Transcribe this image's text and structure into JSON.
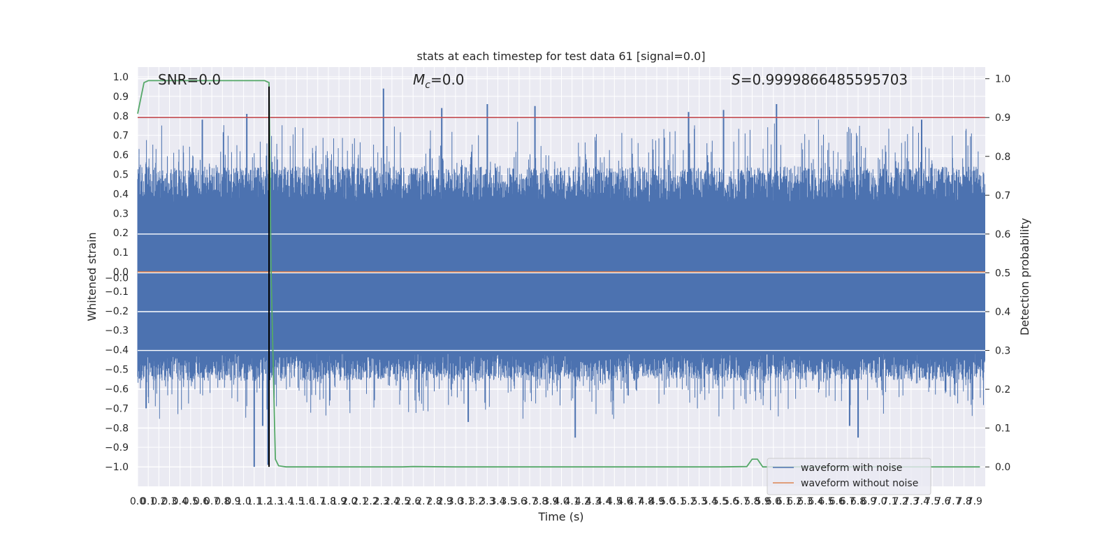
{
  "chart_data": {
    "type": "line",
    "title": "stats at each timestep for test data 61 [signal=0.0]",
    "xlabel": "Time (s)",
    "ylabel_left": "Whitened strain",
    "ylabel_right": "Detection probability",
    "xlim": [
      0.0,
      8.0
    ],
    "ylim_left": [
      -1.1,
      1.05
    ],
    "ylim_right": [
      -0.05,
      1.03
    ],
    "x_ticks": [
      "0.0",
      "0.1",
      "0.2",
      "0.3",
      "0.4",
      "0.5",
      "0.6",
      "0.7",
      "0.8",
      "0.9",
      "1.0",
      "1.1",
      "1.2",
      "1.3",
      "1.4",
      "1.5",
      "1.6",
      "1.7",
      "1.8",
      "1.9",
      "2.0",
      "2.1",
      "2.2",
      "2.3",
      "2.4",
      "2.5",
      "2.6",
      "2.7",
      "2.8",
      "2.9",
      "3.0",
      "3.1",
      "3.2",
      "3.3",
      "3.4",
      "3.5",
      "3.6",
      "3.7",
      "3.8",
      "3.9",
      "4.0",
      "4.1",
      "4.2",
      "4.3",
      "4.4",
      "4.5",
      "4.6",
      "4.7",
      "4.8",
      "4.9",
      "5.0",
      "5.1",
      "5.2",
      "5.3",
      "5.4",
      "5.5",
      "5.6",
      "5.7",
      "5.8",
      "5.9",
      "6.0",
      "6.1",
      "6.2",
      "6.3",
      "6.4",
      "6.5",
      "6.6",
      "6.7",
      "6.8",
      "6.9",
      "7.0",
      "7.1",
      "7.2",
      "7.3",
      "7.4",
      "7.5",
      "7.6",
      "7.7",
      "7.8",
      "7.9"
    ],
    "y_ticks_left": [
      "1.0",
      "0.9",
      "0.8",
      "0.7",
      "0.6",
      "0.5",
      "0.4",
      "0.3",
      "0.2",
      "0.1",
      "0.0",
      "-0.0",
      "-0.1",
      "-0.2",
      "-0.3",
      "-0.4",
      "-0.5",
      "-0.6",
      "-0.7",
      "-0.8",
      "-0.9",
      "-1.0"
    ],
    "y_ticks_right": [
      "1.0",
      "0.9",
      "0.8",
      "0.7",
      "0.6",
      "0.5",
      "0.4",
      "0.3",
      "0.2",
      "0.1",
      "0.0"
    ],
    "annotations": [
      {
        "key": "snr",
        "text": "SNR=0.0"
      },
      {
        "key": "mc",
        "text_main": "M",
        "text_sub": "c",
        "text_rest": "=0.0"
      },
      {
        "key": "s",
        "text_main": "S",
        "text_rest": "=0.9999866485595703"
      }
    ],
    "series": [
      {
        "name": "waveform with noise",
        "color": "#4c72b0",
        "axis": "left",
        "description_values": {
          "band_low": -0.42,
          "band_high": 0.36,
          "spike_max": 0.94,
          "spike_min": -1.0
        }
      },
      {
        "name": "waveform without noise",
        "color": "#dd8452",
        "axis": "left",
        "constant_value": 0.0
      },
      {
        "color": "#55a868",
        "axis": "right",
        "x": [
          0.0,
          0.06,
          0.1,
          0.2,
          0.5,
          1.0,
          1.2,
          1.24,
          1.26,
          1.3,
          1.33,
          1.4,
          2.0,
          2.5,
          2.6,
          3.0,
          5.5,
          5.75,
          5.8,
          5.85,
          5.9,
          5.95,
          6.0,
          6.5,
          7.0,
          7.5,
          7.95
        ],
        "y": [
          0.91,
          0.99,
          0.995,
          0.995,
          0.995,
          0.995,
          0.995,
          0.99,
          0.5,
          0.02,
          0.003,
          0.0,
          0.0,
          0.0,
          0.001,
          0.0,
          0.0,
          0.001,
          0.02,
          0.02,
          0.0,
          0.0,
          0.0,
          0.0,
          0.0,
          0.0,
          0.0
        ]
      },
      {
        "color": "#c44e52",
        "axis": "right",
        "constant_value": 0.9
      },
      {
        "color": "#000000",
        "axis": "left",
        "vertical_x": 1.24,
        "y_range": [
          -1.0,
          0.95
        ]
      }
    ],
    "legend": {
      "position": "lower right",
      "entries": [
        "waveform with noise",
        "waveform without noise"
      ]
    },
    "grid": true
  }
}
